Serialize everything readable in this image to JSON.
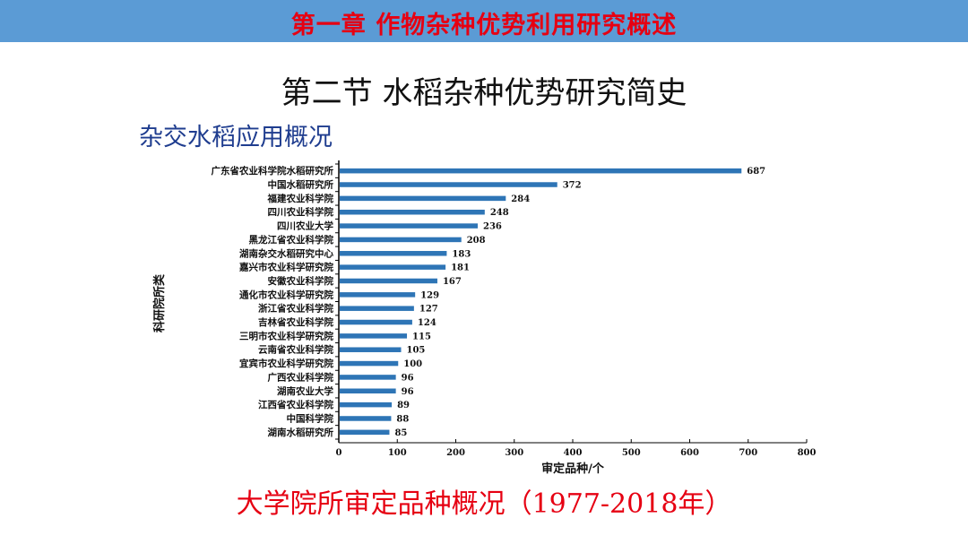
{
  "banner": {
    "title": "第一章  作物杂种优势利用研究概述",
    "background": "#5b9bd5",
    "title_color": "#e60012"
  },
  "section_title": "第二节 水稻杂种优势研究简史",
  "subtitle": "杂交水稻应用概况",
  "caption": "大学院所审定品种概况（1977-2018年）",
  "chart_data": {
    "type": "bar",
    "orientation": "horizontal",
    "title": "",
    "categories": [
      "广东省农业科学院水稻研究所",
      "中国水稻研究所",
      "福建农业科学院",
      "四川农业科学院",
      "四川农业大学",
      "黑龙江省农业科学院",
      "湖南杂交水稻研究中心",
      "嘉兴市农业科学研究院",
      "安徽农业科学院",
      "通化市农业科学研究院",
      "浙江省农业科学院",
      "吉林省农业科学院",
      "三明市农业科学研究院",
      "云南省农业科学院",
      "宜宾市农业科学研究院",
      "广西农业科学院",
      "湖南农业大学",
      "江西省农业科学院",
      "中国科学院",
      "湖南水稻研究所"
    ],
    "values": [
      687,
      372,
      284,
      248,
      236,
      208,
      183,
      181,
      167,
      129,
      127,
      124,
      115,
      105,
      100,
      96,
      96,
      89,
      88,
      85
    ],
    "xlabel": "审定品种/个",
    "ylabel": "科研院所类",
    "xlim": [
      0,
      800
    ],
    "xticks": [
      "0",
      "100",
      "200",
      "300",
      "400",
      "500",
      "600",
      "700",
      "800"
    ],
    "bar_color": "#2e75b6",
    "grid": false
  }
}
